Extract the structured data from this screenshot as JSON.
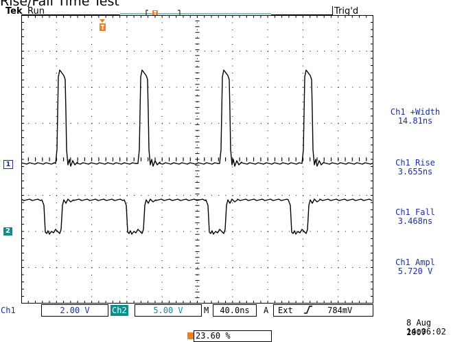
{
  "page": {
    "title": "Rise/Fall Time Test"
  },
  "header": {
    "brand": "Tek",
    "run_state": "Run",
    "trigger_state": "Trig'd"
  },
  "measurements": [
    {
      "label": "Ch1 +Width",
      "value": "14.81ns"
    },
    {
      "label": "Ch1 Rise",
      "value": "3.655ns"
    },
    {
      "label": "Ch1 Fall",
      "value": "3.468ns"
    },
    {
      "label": "Ch1 Ampl",
      "value": "5.720 V"
    }
  ],
  "channels": {
    "ch1": {
      "marker": "1",
      "label": "Ch1",
      "scale": "2.00 V",
      "color": "#1a2fa0"
    },
    "ch2": {
      "marker": "2",
      "label": "Ch2",
      "scale": "5.00 V",
      "color": "#0a8e8e"
    }
  },
  "timebase": {
    "label": "M",
    "scale": "40.0ns"
  },
  "trigger": {
    "mode_label": "A",
    "source": "Ext",
    "slope_icon": "rising-edge-icon",
    "level": "784mV",
    "position": "23.60 %",
    "marker_color": "#f07f1f"
  },
  "timestamp": {
    "date": "8 Aug 2007",
    "time": "14:06:02"
  }
}
